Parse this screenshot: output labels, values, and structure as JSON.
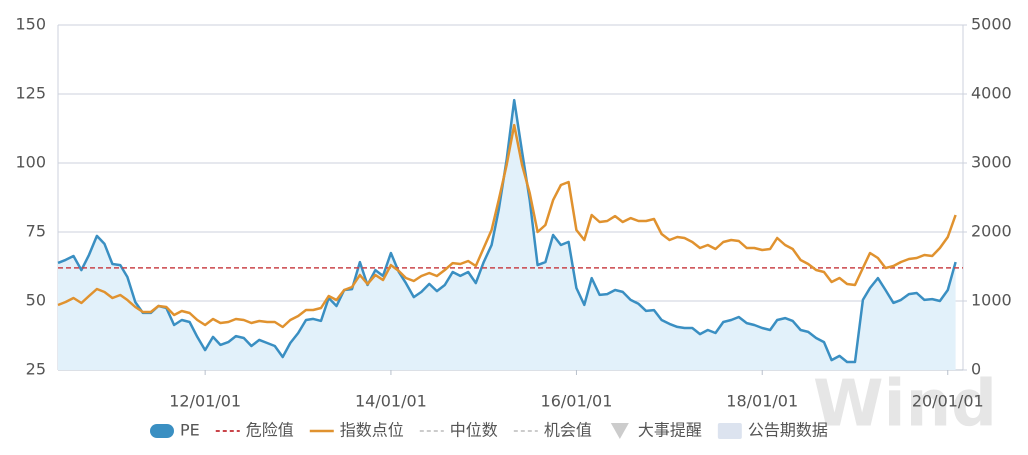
{
  "chart_data": {
    "type": "line",
    "x": [
      "2010-06-01",
      "2010-07-01",
      "2010-08-01",
      "2010-09-01",
      "2010-10-01",
      "2010-11-01",
      "2010-12-01",
      "2011-01-01",
      "2011-02-01",
      "2011-03-01",
      "2011-04-01",
      "2011-05-01",
      "2011-06-01",
      "2011-07-01",
      "2011-08-01",
      "2011-09-01",
      "2011-10-01",
      "2011-11-01",
      "2011-12-01",
      "2012-01-01",
      "2012-02-01",
      "2012-03-01",
      "2012-04-01",
      "2012-05-01",
      "2012-06-01",
      "2012-07-01",
      "2012-08-01",
      "2012-09-01",
      "2012-10-01",
      "2012-11-01",
      "2012-12-01",
      "2013-01-01",
      "2013-02-01",
      "2013-03-01",
      "2013-04-01",
      "2013-05-01",
      "2013-06-01",
      "2013-07-01",
      "2013-08-01",
      "2013-09-01",
      "2013-10-01",
      "2013-11-01",
      "2013-12-01",
      "2014-01-01",
      "2014-02-01",
      "2014-03-01",
      "2014-04-01",
      "2014-05-01",
      "2014-06-01",
      "2014-07-01",
      "2014-08-01",
      "2014-09-01",
      "2014-10-01",
      "2014-11-01",
      "2014-12-01",
      "2015-01-01",
      "2015-02-01",
      "2015-03-01",
      "2015-04-01",
      "2015-05-01",
      "2015-06-01",
      "2015-07-01",
      "2015-08-01",
      "2015-09-01",
      "2015-10-01",
      "2015-11-01",
      "2015-12-01",
      "2016-01-01",
      "2016-02-01",
      "2016-03-01",
      "2016-04-01",
      "2016-05-01",
      "2016-06-01",
      "2016-07-01",
      "2016-08-01",
      "2016-09-01",
      "2016-10-01",
      "2016-11-01",
      "2016-12-01",
      "2017-01-01",
      "2017-02-01",
      "2017-03-01",
      "2017-04-01",
      "2017-05-01",
      "2017-06-01",
      "2017-07-01",
      "2017-08-01",
      "2017-09-01",
      "2017-10-01",
      "2017-11-01",
      "2017-12-01",
      "2018-01-01",
      "2018-02-01",
      "2018-03-01",
      "2018-04-01",
      "2018-05-01",
      "2018-06-01",
      "2018-07-01",
      "2018-08-01",
      "2018-09-01",
      "2018-10-01",
      "2018-11-01",
      "2018-12-01",
      "2019-01-01",
      "2019-02-01",
      "2019-03-01",
      "2019-04-01",
      "2019-05-01",
      "2019-06-01",
      "2019-07-01",
      "2019-08-01",
      "2019-09-01",
      "2019-10-01",
      "2019-11-01",
      "2019-12-01",
      "2020-01-01",
      "2020-02-01"
    ],
    "series": [
      {
        "name": "PE",
        "color": "#3a8fc2",
        "area_color": "#e2f1fa",
        "axis": "y",
        "values": [
          63.8,
          64.9,
          66.3,
          61.2,
          66.7,
          73.6,
          70.7,
          63.4,
          63,
          58.7,
          49.6,
          45.7,
          45.7,
          48.2,
          47.5,
          41.3,
          43.1,
          42.4,
          37,
          32.2,
          37,
          34.1,
          35.1,
          37.3,
          36.6,
          33.7,
          35.9,
          34.8,
          33.7,
          29.7,
          34.8,
          38.4,
          43.1,
          43.5,
          42.8,
          51.1,
          48.2,
          54,
          54.3,
          64.1,
          55.8,
          61.2,
          59.1,
          67.4,
          60.5,
          56.5,
          51.4,
          53.3,
          56.2,
          53.6,
          55.8,
          60.5,
          59.1,
          60.5,
          56.5,
          64.1,
          70.3,
          83,
          101.1,
          122.8,
          104,
          86.6,
          63,
          64.1,
          73.9,
          70.3,
          71.4,
          54.7,
          48.6,
          58.3,
          52.2,
          52.5,
          54,
          53.3,
          50.4,
          49,
          46.4,
          46.7,
          43.1,
          41.7,
          40.6,
          40.2,
          40.2,
          38,
          39.5,
          38.4,
          42.4,
          43.1,
          44.2,
          42,
          41.3,
          40.2,
          39.5,
          43.1,
          43.8,
          42.8,
          39.5,
          38.8,
          36.6,
          35.1,
          28.6,
          30.1,
          27.9,
          27.9,
          50.4,
          54.7,
          58.3,
          54,
          49.3,
          50.4,
          52.5,
          52.9,
          50.4,
          50.7,
          50,
          54,
          64.1
        ]
      },
      {
        "name": "指数点位",
        "color": "#e0922f",
        "axis": "y2",
        "values": [
          942,
          985,
          1043,
          971,
          1072,
          1174,
          1130,
          1043,
          1087,
          1014,
          913,
          840,
          840,
          927,
          913,
          797,
          855,
          826,
          724,
          652,
          739,
          681,
          696,
          739,
          724,
          681,
          710,
          696,
          696,
          623,
          724,
          782,
          869,
          869,
          898,
          1072,
          1014,
          1159,
          1203,
          1377,
          1246,
          1377,
          1304,
          1521,
          1435,
          1333,
          1290,
          1362,
          1406,
          1362,
          1449,
          1550,
          1536,
          1579,
          1507,
          1768,
          2029,
          2463,
          2970,
          3550,
          2970,
          2565,
          2000,
          2101,
          2463,
          2681,
          2724,
          2029,
          1884,
          2246,
          2145,
          2159,
          2231,
          2145,
          2202,
          2159,
          2159,
          2188,
          1971,
          1884,
          1927,
          1913,
          1855,
          1768,
          1811,
          1753,
          1855,
          1884,
          1869,
          1768,
          1768,
          1739,
          1753,
          1913,
          1811,
          1753,
          1594,
          1536,
          1449,
          1420,
          1275,
          1333,
          1246,
          1232,
          1478,
          1695,
          1623,
          1478,
          1507,
          1565,
          1608,
          1623,
          1666,
          1652,
          1768,
          1927,
          2246
        ]
      }
    ],
    "reference_lines": [
      {
        "name": "危险值",
        "value": 62,
        "color": "#c9454a",
        "axis": "y"
      }
    ],
    "other_legend_items": [
      {
        "name": "中位数",
        "symbol": "dash",
        "color": "#cccccc",
        "disabled": true
      },
      {
        "name": "机会值",
        "symbol": "dash",
        "color": "#cccccc",
        "disabled": true
      },
      {
        "name": "大事提醒",
        "symbol": "triangle",
        "color": "#cccccc",
        "disabled": true
      },
      {
        "name": "公告期数据",
        "symbol": "rect",
        "color": "#dce3ef",
        "disabled": false
      }
    ],
    "xlim": [
      "2010-06-01",
      "2020-03-01"
    ],
    "xticks": [
      {
        "value": "2012-01-01",
        "label": "12/01/01"
      },
      {
        "value": "2014-01-01",
        "label": "14/01/01"
      },
      {
        "value": "2016-01-01",
        "label": "16/01/01"
      },
      {
        "value": "2018-01-01",
        "label": "18/01/01"
      },
      {
        "value": "2020-01-01",
        "label": "20/01/01"
      }
    ],
    "ylim": [
      25,
      150
    ],
    "yticks": [
      25,
      50,
      75,
      100,
      125,
      150
    ],
    "y2lim": [
      0,
      5000
    ],
    "y2ticks": [
      0,
      1000,
      2000,
      3000,
      4000,
      5000
    ],
    "grid": true,
    "watermark": "Wind"
  }
}
